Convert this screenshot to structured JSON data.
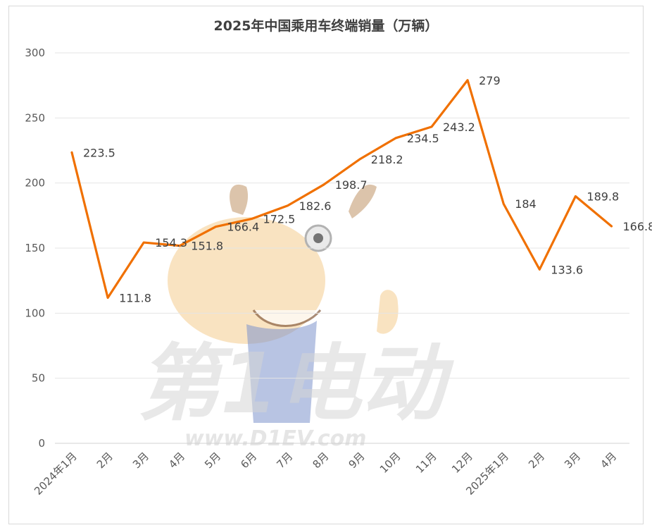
{
  "chart_data": {
    "type": "line",
    "title": "2025年中国乘用车终端销量（万辆）",
    "categories": [
      "2024年1月",
      "2月",
      "3月",
      "4月",
      "5月",
      "6月",
      "7月",
      "8月",
      "9月",
      "10月",
      "11月",
      "12月",
      "2025年1月",
      "2月",
      "3月",
      "4月"
    ],
    "values": [
      223.5,
      111.8,
      154.3,
      151.8,
      166.4,
      172.5,
      182.6,
      198.7,
      218.2,
      234.5,
      243.2,
      279,
      184,
      133.6,
      189.8,
      166.8
    ],
    "data_labels": [
      "223.5",
      "111.8",
      "154.3",
      "151.8",
      "166.4",
      "172.5",
      "182.6",
      "198.7",
      "218.2",
      "234.5",
      "243.2",
      "279",
      "184",
      "133.6",
      "189.8",
      "166.8"
    ],
    "y_ticks": [
      "0",
      "50",
      "100",
      "150",
      "200",
      "250",
      "300"
    ],
    "ylim": [
      0,
      300
    ],
    "grid": true,
    "legend": "none",
    "line_color": "#F07000"
  },
  "watermark": {
    "text_cn": "第1电动",
    "url": "www.D1EV.com"
  }
}
